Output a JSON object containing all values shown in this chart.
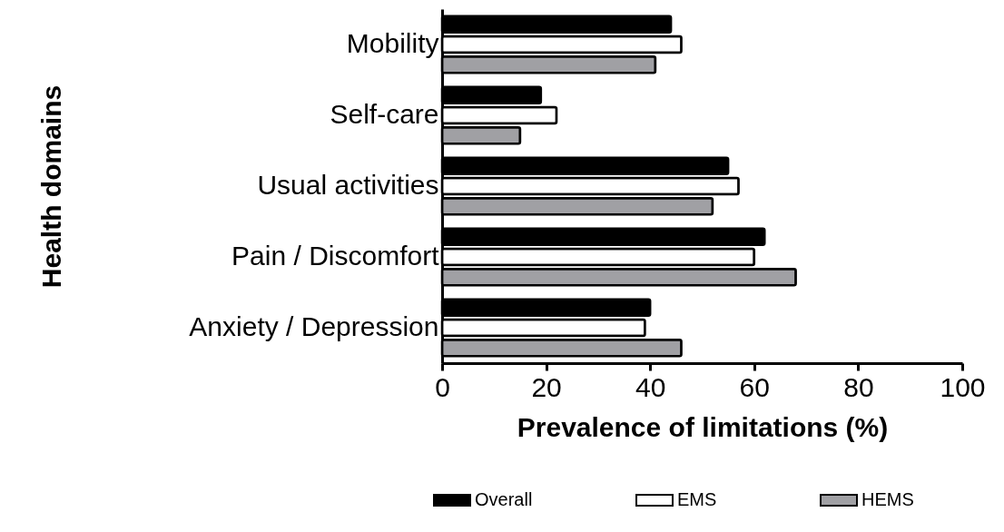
{
  "chart_data": {
    "type": "bar",
    "orientation": "horizontal",
    "xlabel": "Prevalence of limitations (%)",
    "ylabel": "Health domains",
    "categories": [
      "Mobility",
      "Self-care",
      "Usual activities",
      "Pain / Discomfort",
      "Anxiety / Depression"
    ],
    "series": [
      {
        "name": "Overall",
        "color": "#000000",
        "values": [
          44,
          19,
          55,
          62,
          40
        ]
      },
      {
        "name": "EMS",
        "color": "#ffffff",
        "values": [
          46,
          22,
          57,
          60,
          39
        ]
      },
      {
        "name": "HEMS",
        "color": "#a0a0a4",
        "values": [
          41,
          15,
          52,
          68,
          46
        ]
      }
    ],
    "xlim": [
      0,
      100
    ],
    "xticks": [
      0,
      20,
      40,
      60,
      80,
      100
    ],
    "grid": false,
    "legend": "bottom"
  }
}
